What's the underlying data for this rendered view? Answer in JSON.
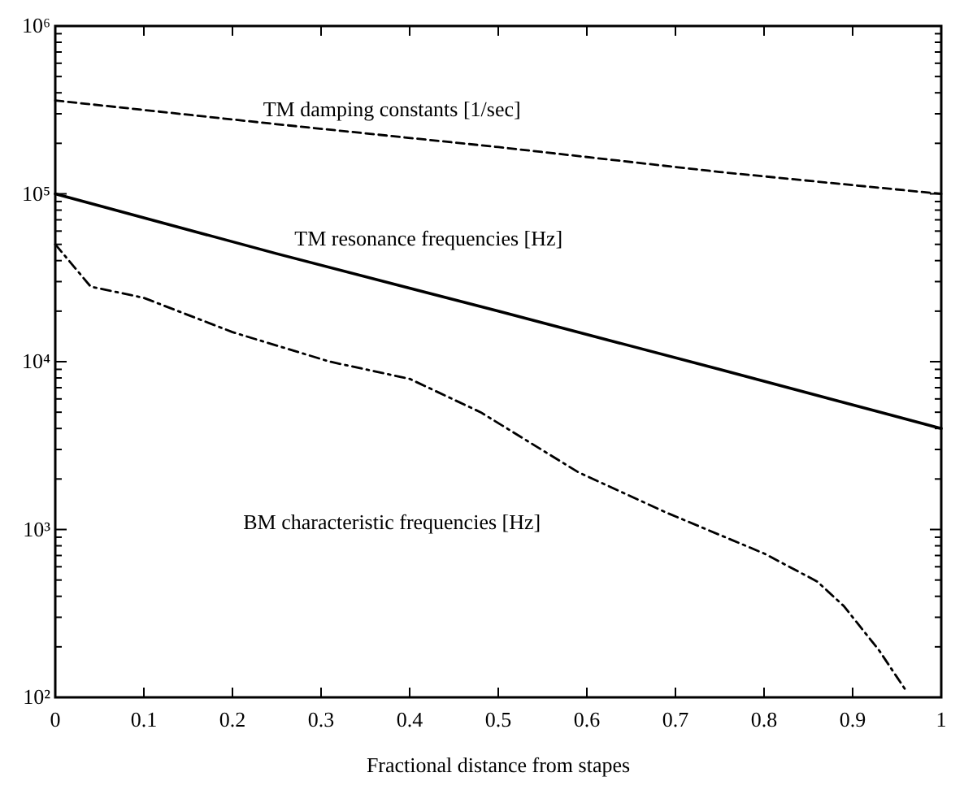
{
  "chart_data": {
    "type": "line",
    "xlabel": "Fractional distance from stapes",
    "log": "y",
    "xlim": [
      0,
      1
    ],
    "ylim": [
      100,
      1000000
    ],
    "xticks": [
      0,
      0.1,
      0.2,
      0.3,
      0.4,
      0.5,
      0.6,
      0.7,
      0.8,
      0.9,
      1
    ],
    "yticks": [
      {
        "value": 100,
        "label": "10²"
      },
      {
        "value": 200,
        "label": null
      },
      {
        "value": 300,
        "label": null
      },
      {
        "value": 400,
        "label": null
      },
      {
        "value": 500,
        "label": null
      },
      {
        "value": 600,
        "label": null
      },
      {
        "value": 700,
        "label": null
      },
      {
        "value": 800,
        "label": null
      },
      {
        "value": 900,
        "label": null
      },
      {
        "value": 1000,
        "label": "10³"
      },
      {
        "value": 2000,
        "label": null
      },
      {
        "value": 3000,
        "label": null
      },
      {
        "value": 4000,
        "label": null
      },
      {
        "value": 5000,
        "label": null
      },
      {
        "value": 6000,
        "label": null
      },
      {
        "value": 7000,
        "label": null
      },
      {
        "value": 8000,
        "label": null
      },
      {
        "value": 9000,
        "label": null
      },
      {
        "value": 10000,
        "label": "10⁴"
      },
      {
        "value": 20000,
        "label": null
      },
      {
        "value": 30000,
        "label": null
      },
      {
        "value": 40000,
        "label": null
      },
      {
        "value": 50000,
        "label": null
      },
      {
        "value": 60000,
        "label": null
      },
      {
        "value": 70000,
        "label": null
      },
      {
        "value": 80000,
        "label": null
      },
      {
        "value": 90000,
        "label": null
      },
      {
        "value": 100000,
        "label": "10⁵"
      },
      {
        "value": 200000,
        "label": null
      },
      {
        "value": 300000,
        "label": null
      },
      {
        "value": 400000,
        "label": null
      },
      {
        "value": 500000,
        "label": null
      },
      {
        "value": 600000,
        "label": null
      },
      {
        "value": 700000,
        "label": null
      },
      {
        "value": 800000,
        "label": null
      },
      {
        "value": 900000,
        "label": null
      },
      {
        "value": 1000000,
        "label": "10⁶"
      }
    ],
    "grid": false,
    "series": [
      {
        "name": "TM damping constants [1/sec]",
        "color": "#000000",
        "line_style": "dashed",
        "x": [
          0,
          0.25,
          0.5,
          0.75,
          1
        ],
        "values": [
          360000,
          260000,
          190000,
          135000,
          100000
        ]
      },
      {
        "name": "TM resonance frequencies [Hz]",
        "color": "#000000",
        "line_style": "solid",
        "x": [
          0,
          0.25,
          0.5,
          0.75,
          1
        ],
        "values": [
          100000,
          44000,
          20000,
          9000,
          4000
        ]
      },
      {
        "name": "BM characteristic frequencies [Hz]",
        "color": "#000000",
        "line_style": "dashdot",
        "x": [
          0,
          0.04,
          0.1,
          0.2,
          0.31,
          0.4,
          0.48,
          0.59,
          0.69,
          0.8,
          0.86,
          0.89,
          0.93,
          0.96
        ],
        "values": [
          50000,
          28000,
          24000,
          15000,
          10000,
          7900,
          5000,
          2200,
          1260,
          720,
          490,
          350,
          190,
          110
        ]
      }
    ]
  }
}
